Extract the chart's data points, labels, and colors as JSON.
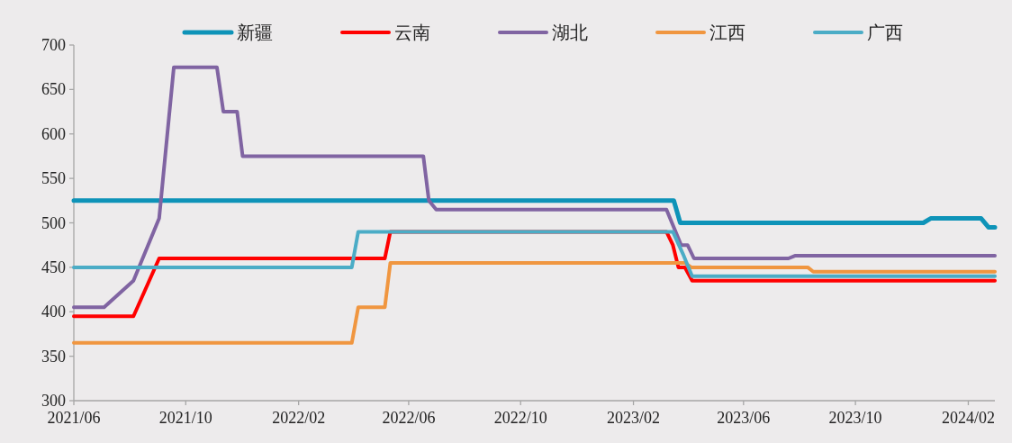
{
  "chart_data": {
    "type": "line",
    "xlim": [
      "2021-06-01",
      "2024-03-01"
    ],
    "ylim": [
      300,
      700
    ],
    "xticks": [
      {
        "value": "2021-06-01",
        "label": "2021/06"
      },
      {
        "value": "2021-10-01",
        "label": "2021/10"
      },
      {
        "value": "2022-02-01",
        "label": "2022/02"
      },
      {
        "value": "2022-06-01",
        "label": "2022/06"
      },
      {
        "value": "2022-10-01",
        "label": "2022/10"
      },
      {
        "value": "2023-02-01",
        "label": "2023/02"
      },
      {
        "value": "2023-06-01",
        "label": "2023/06"
      },
      {
        "value": "2023-10-01",
        "label": "2023/10"
      },
      {
        "value": "2024-02-01",
        "label": "2024/02"
      }
    ],
    "yticks": [
      300,
      350,
      400,
      450,
      500,
      550,
      600,
      650,
      700
    ],
    "grid": false,
    "legend": "top",
    "marker": "none",
    "line_style": "solid",
    "series": [
      {
        "name": "新疆",
        "color": "#0e93b8",
        "x": [
          "2021-06-01",
          "2023-03-17",
          "2023-03-24",
          "2023-12-14",
          "2023-12-22",
          "2024-02-15",
          "2024-02-23",
          "2024-03-01"
        ],
        "values": [
          525,
          525,
          500,
          500,
          505,
          505,
          495,
          495
        ]
      },
      {
        "name": "云南",
        "color": "#ff0000",
        "x": [
          "2021-06-01",
          "2021-08-05",
          "2021-09-02",
          "2022-05-06",
          "2022-05-12",
          "2023-03-09",
          "2023-03-16",
          "2023-03-22",
          "2023-03-29",
          "2023-04-06",
          "2024-03-01"
        ],
        "values": [
          395,
          395,
          460,
          460,
          490,
          490,
          475,
          450,
          450,
          435,
          435
        ]
      },
      {
        "name": "湖北",
        "color": "#8064a2",
        "x": [
          "2021-06-01",
          "2021-07-04",
          "2021-08-05",
          "2021-09-02",
          "2021-09-18",
          "2021-11-04",
          "2021-11-11",
          "2021-11-26",
          "2021-12-02",
          "2022-06-17",
          "2022-06-23",
          "2022-07-01",
          "2023-03-09",
          "2023-03-25",
          "2023-04-01",
          "2023-04-08",
          "2023-07-20",
          "2023-07-27",
          "2024-03-01"
        ],
        "values": [
          405,
          405,
          435,
          505,
          675,
          675,
          625,
          625,
          575,
          575,
          525,
          515,
          515,
          475,
          475,
          460,
          460,
          463,
          463
        ]
      },
      {
        "name": "江西",
        "color": "#f09640",
        "x": [
          "2021-06-01",
          "2022-03-31",
          "2022-04-07",
          "2022-05-06",
          "2022-05-12",
          "2023-03-29",
          "2023-04-05",
          "2023-08-10",
          "2023-08-16",
          "2024-03-01"
        ],
        "values": [
          365,
          365,
          405,
          405,
          455,
          455,
          450,
          450,
          445,
          445
        ]
      },
      {
        "name": "广西",
        "color": "#4bacc6",
        "x": [
          "2021-06-01",
          "2022-03-31",
          "2022-04-07",
          "2023-03-16",
          "2023-03-27",
          "2023-04-06",
          "2024-03-01"
        ],
        "values": [
          450,
          450,
          490,
          490,
          465,
          440,
          440
        ]
      }
    ]
  }
}
